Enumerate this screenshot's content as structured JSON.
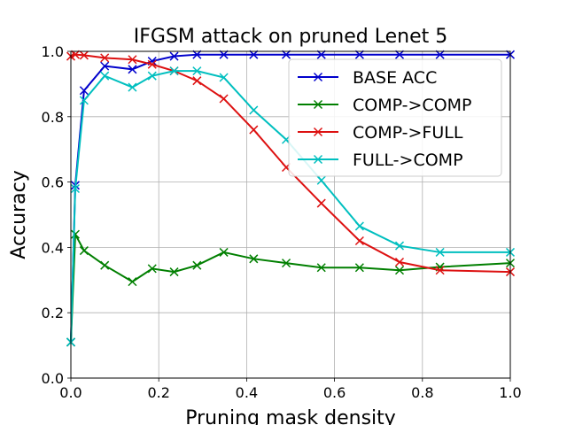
{
  "chart_data": {
    "type": "line",
    "title": "IFGSM attack on pruned Lenet 5",
    "xlabel": "Pruning mask density",
    "ylabel": "Accuracy",
    "xlim": [
      0.0,
      1.0
    ],
    "ylim": [
      0.0,
      1.0
    ],
    "xticks": [
      "0.0",
      "0.2",
      "0.4",
      "0.6",
      "0.8",
      "1.0"
    ],
    "yticks": [
      "0.0",
      "0.2",
      "0.4",
      "0.6",
      "0.8",
      "1.0"
    ],
    "grid": true,
    "legend_position": "top-right",
    "x": [
      0.0,
      0.01,
      0.03,
      0.077,
      0.14,
      0.185,
      0.235,
      0.287,
      0.348,
      0.416,
      0.49,
      0.57,
      0.657,
      0.748,
      0.84,
      1.0
    ],
    "series": [
      {
        "name": "BASE ACC",
        "color": "#0000cc",
        "values": [
          0.11,
          0.59,
          0.88,
          0.955,
          0.945,
          0.97,
          0.985,
          0.99,
          0.99,
          0.99,
          0.99,
          0.99,
          0.99,
          0.99,
          0.99,
          0.99
        ]
      },
      {
        "name": "COMP->COMP",
        "color": "#007f00",
        "values": [
          0.11,
          0.44,
          0.39,
          0.345,
          0.295,
          0.335,
          0.325,
          0.345,
          0.385,
          0.365,
          0.352,
          0.338,
          0.338,
          0.33,
          0.34,
          0.352
        ]
      },
      {
        "name": "COMP->FULL",
        "color": "#dd1111",
        "values": [
          0.985,
          0.99,
          0.988,
          0.98,
          0.975,
          0.96,
          0.94,
          0.91,
          0.855,
          0.76,
          0.645,
          0.535,
          0.42,
          0.355,
          0.33,
          0.325
        ]
      },
      {
        "name": "FULL->COMP",
        "color": "#00bfbf",
        "values": [
          0.11,
          0.58,
          0.85,
          0.925,
          0.89,
          0.925,
          0.94,
          0.94,
          0.92,
          0.82,
          0.73,
          0.605,
          0.465,
          0.405,
          0.385,
          0.385
        ]
      }
    ]
  }
}
